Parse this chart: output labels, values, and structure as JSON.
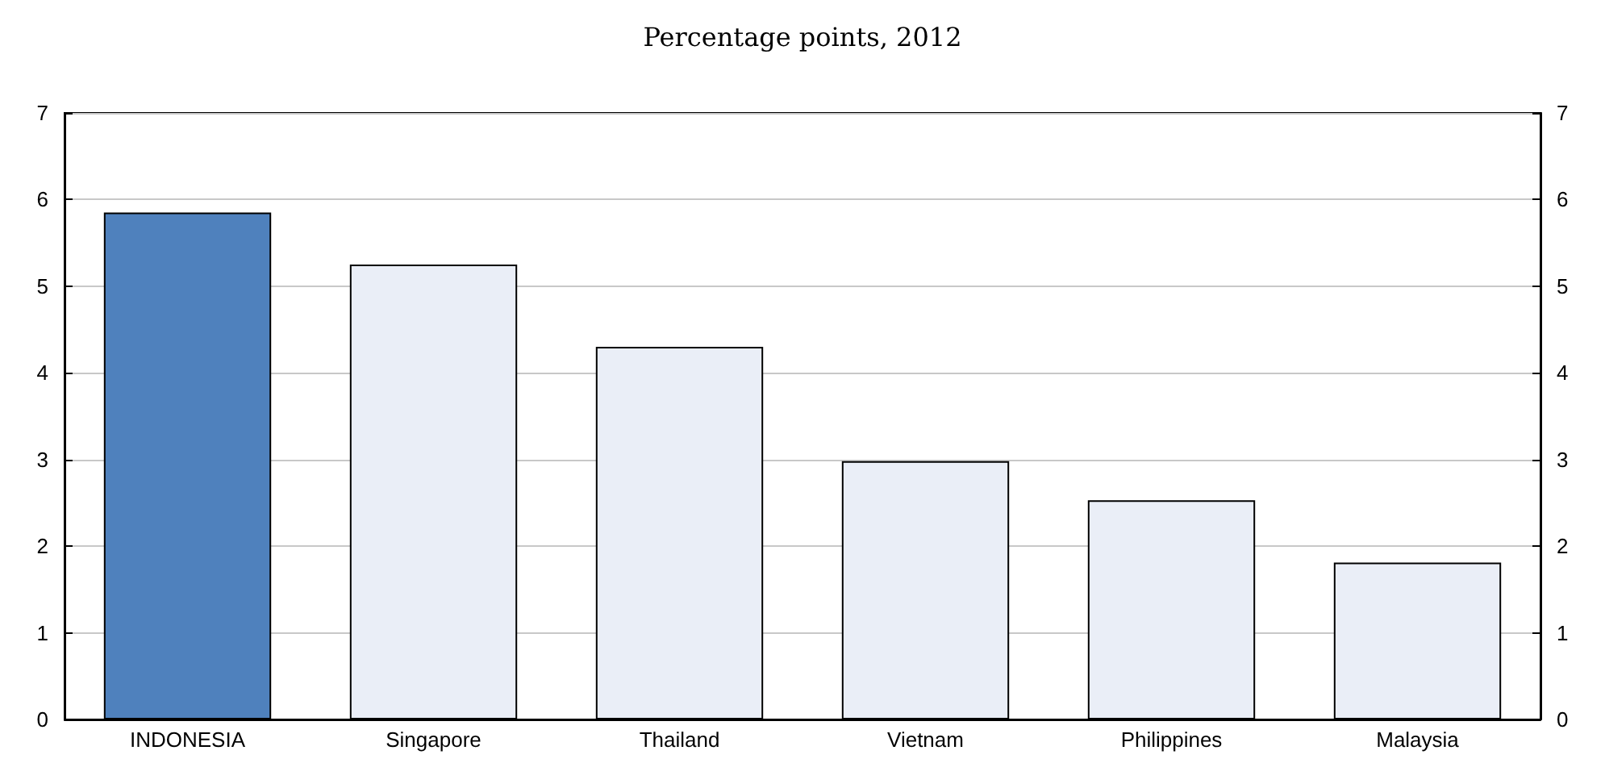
{
  "chart_data": {
    "type": "bar",
    "title": "Percentage points, 2012",
    "categories": [
      "INDONESIA",
      "Singapore",
      "Thailand",
      "Vietnam",
      "Philippines",
      "Malaysia"
    ],
    "values": [
      5.85,
      5.25,
      4.3,
      2.98,
      2.53,
      1.81
    ],
    "colors": [
      "#4f81bd",
      "#eaeef7",
      "#eaeef7",
      "#eaeef7",
      "#eaeef7",
      "#eaeef7"
    ],
    "ylim": [
      0,
      7
    ],
    "yticks": [
      0,
      1,
      2,
      3,
      4,
      5,
      6,
      7
    ],
    "y2lim": [
      0,
      7
    ],
    "y2ticks": [
      0,
      1,
      2,
      3,
      4,
      5,
      6,
      7
    ],
    "grid": "y"
  }
}
